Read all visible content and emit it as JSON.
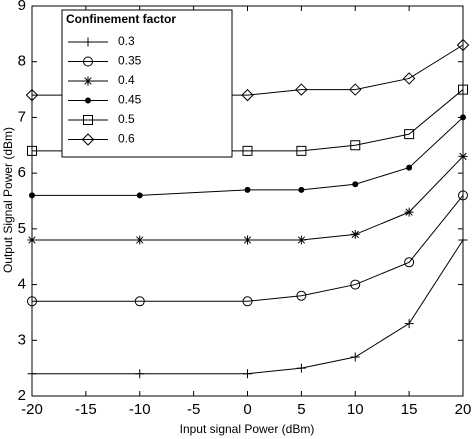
{
  "chart_data": {
    "type": "line",
    "x_label": "Input signal Power (dBm)",
    "y_label": "Output Signal Power (dBm)",
    "legend_title": "Confinement factor",
    "legend_position": "upper left",
    "grid": false,
    "x": [
      -20,
      -10,
      0,
      5,
      10,
      15,
      20
    ],
    "xlim": [
      -20,
      20
    ],
    "xticks": [
      -20,
      -15,
      -10,
      -5,
      0,
      5,
      10,
      15,
      20
    ],
    "ylim": [
      2,
      9
    ],
    "yticks": [
      2,
      3,
      4,
      5,
      6,
      7,
      8,
      9
    ],
    "series": [
      {
        "name": "0.3",
        "color": "#000000",
        "marker": "plus",
        "values": [
          2.4,
          2.4,
          2.4,
          2.5,
          2.7,
          3.3,
          4.8
        ]
      },
      {
        "name": "0.35",
        "color": "#000000",
        "marker": "circle",
        "values": [
          3.7,
          3.7,
          3.7,
          3.8,
          4.0,
          4.4,
          5.6
        ]
      },
      {
        "name": "0.4",
        "color": "#000000",
        "marker": "star",
        "values": [
          4.8,
          4.8,
          4.8,
          4.8,
          4.9,
          5.3,
          6.3
        ]
      },
      {
        "name": "0.45",
        "color": "#000000",
        "marker": "dot",
        "values": [
          5.6,
          5.6,
          5.7,
          5.7,
          5.8,
          6.1,
          7.0
        ]
      },
      {
        "name": "0.5",
        "color": "#000000",
        "marker": "square",
        "values": [
          6.4,
          6.4,
          6.4,
          6.4,
          6.5,
          6.7,
          7.5
        ]
      },
      {
        "name": "0.6",
        "color": "#000000",
        "marker": "diamond",
        "values": [
          7.4,
          7.4,
          7.4,
          7.5,
          7.5,
          7.7,
          8.3
        ]
      }
    ]
  }
}
